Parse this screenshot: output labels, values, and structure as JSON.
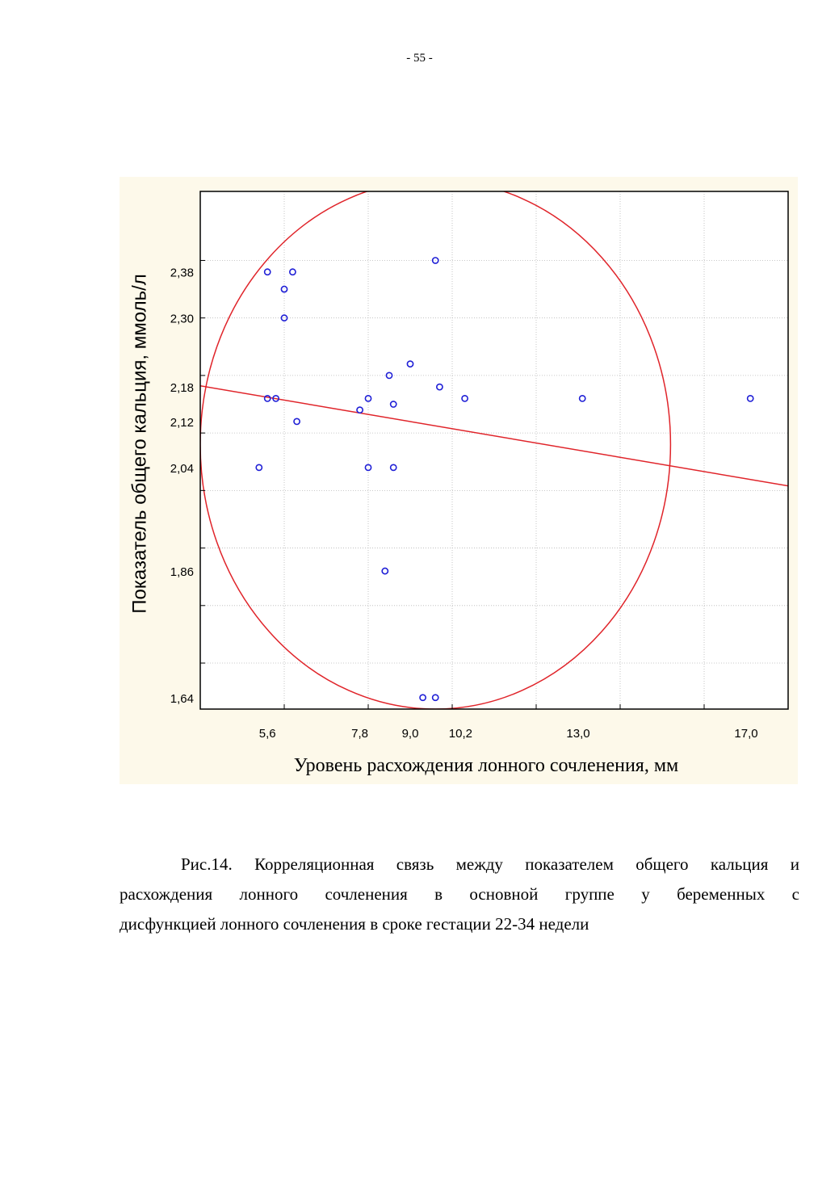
{
  "page": {
    "number": "- 55 -"
  },
  "caption": {
    "lines": [
      "Рис.14. Корреляционная связь между показателем общего кальция и",
      "расхождения лонного сочленения в основной группе у беременных с",
      "дисфункцией лонного сочленения в сроке гестации 22-34 недели"
    ]
  },
  "chart_data": {
    "type": "scatter",
    "xlabel": "Уровень расхождения лонного сочленения, мм",
    "ylabel": "Показатель общего кальция, ммоль/л",
    "xlim": [
      4.0,
      18.0
    ],
    "ylim": [
      1.62,
      2.52
    ],
    "x_ticks": [
      {
        "value": 5.6,
        "label": "5,6"
      },
      {
        "value": 7.8,
        "label": "7,8"
      },
      {
        "value": 9.0,
        "label": "9,0"
      },
      {
        "value": 10.2,
        "label": "10,2"
      },
      {
        "value": 13.0,
        "label": "13,0"
      },
      {
        "value": 17.0,
        "label": "17,0"
      }
    ],
    "x_grid": [
      6.0,
      8.0,
      10.0,
      12.0,
      14.0,
      16.0
    ],
    "y_ticks": [
      {
        "value": 2.38,
        "label": "2,38"
      },
      {
        "value": 2.3,
        "label": "2,30"
      },
      {
        "value": 2.18,
        "label": "2,18"
      },
      {
        "value": 2.12,
        "label": "2,12"
      },
      {
        "value": 2.04,
        "label": "2,04"
      },
      {
        "value": 1.86,
        "label": "1,86"
      },
      {
        "value": 1.64,
        "label": "1,64"
      }
    ],
    "y_grid": [
      2.4,
      2.3,
      2.2,
      2.1,
      2.0,
      1.9,
      1.8,
      1.7
    ],
    "grid": true,
    "points": [
      {
        "x": 5.6,
        "y": 2.38
      },
      {
        "x": 6.2,
        "y": 2.38
      },
      {
        "x": 6.0,
        "y": 2.35
      },
      {
        "x": 6.0,
        "y": 2.3
      },
      {
        "x": 9.6,
        "y": 2.4
      },
      {
        "x": 9.0,
        "y": 2.22
      },
      {
        "x": 8.5,
        "y": 2.2
      },
      {
        "x": 9.7,
        "y": 2.18
      },
      {
        "x": 10.3,
        "y": 2.16
      },
      {
        "x": 13.1,
        "y": 2.16
      },
      {
        "x": 17.1,
        "y": 2.16
      },
      {
        "x": 5.6,
        "y": 2.16
      },
      {
        "x": 5.8,
        "y": 2.16
      },
      {
        "x": 8.0,
        "y": 2.16
      },
      {
        "x": 7.8,
        "y": 2.14
      },
      {
        "x": 8.6,
        "y": 2.15
      },
      {
        "x": 6.3,
        "y": 2.12
      },
      {
        "x": 5.4,
        "y": 2.04
      },
      {
        "x": 8.0,
        "y": 2.04
      },
      {
        "x": 8.6,
        "y": 2.04
      },
      {
        "x": 8.4,
        "y": 1.86
      },
      {
        "x": 9.3,
        "y": 1.64
      },
      {
        "x": 9.6,
        "y": 1.64
      }
    ],
    "regression_line": {
      "x": [
        4.0,
        18.0
      ],
      "y": [
        2.182,
        2.008
      ]
    },
    "confidence_ellipse": {
      "cx": 9.6,
      "cy": 2.08,
      "rx": 5.6,
      "ry": 0.46
    },
    "colors": {
      "points": "#1f1fd6",
      "line": "#e0242a",
      "grid": "#b8b8b8",
      "background": "#fdf9ea"
    }
  }
}
